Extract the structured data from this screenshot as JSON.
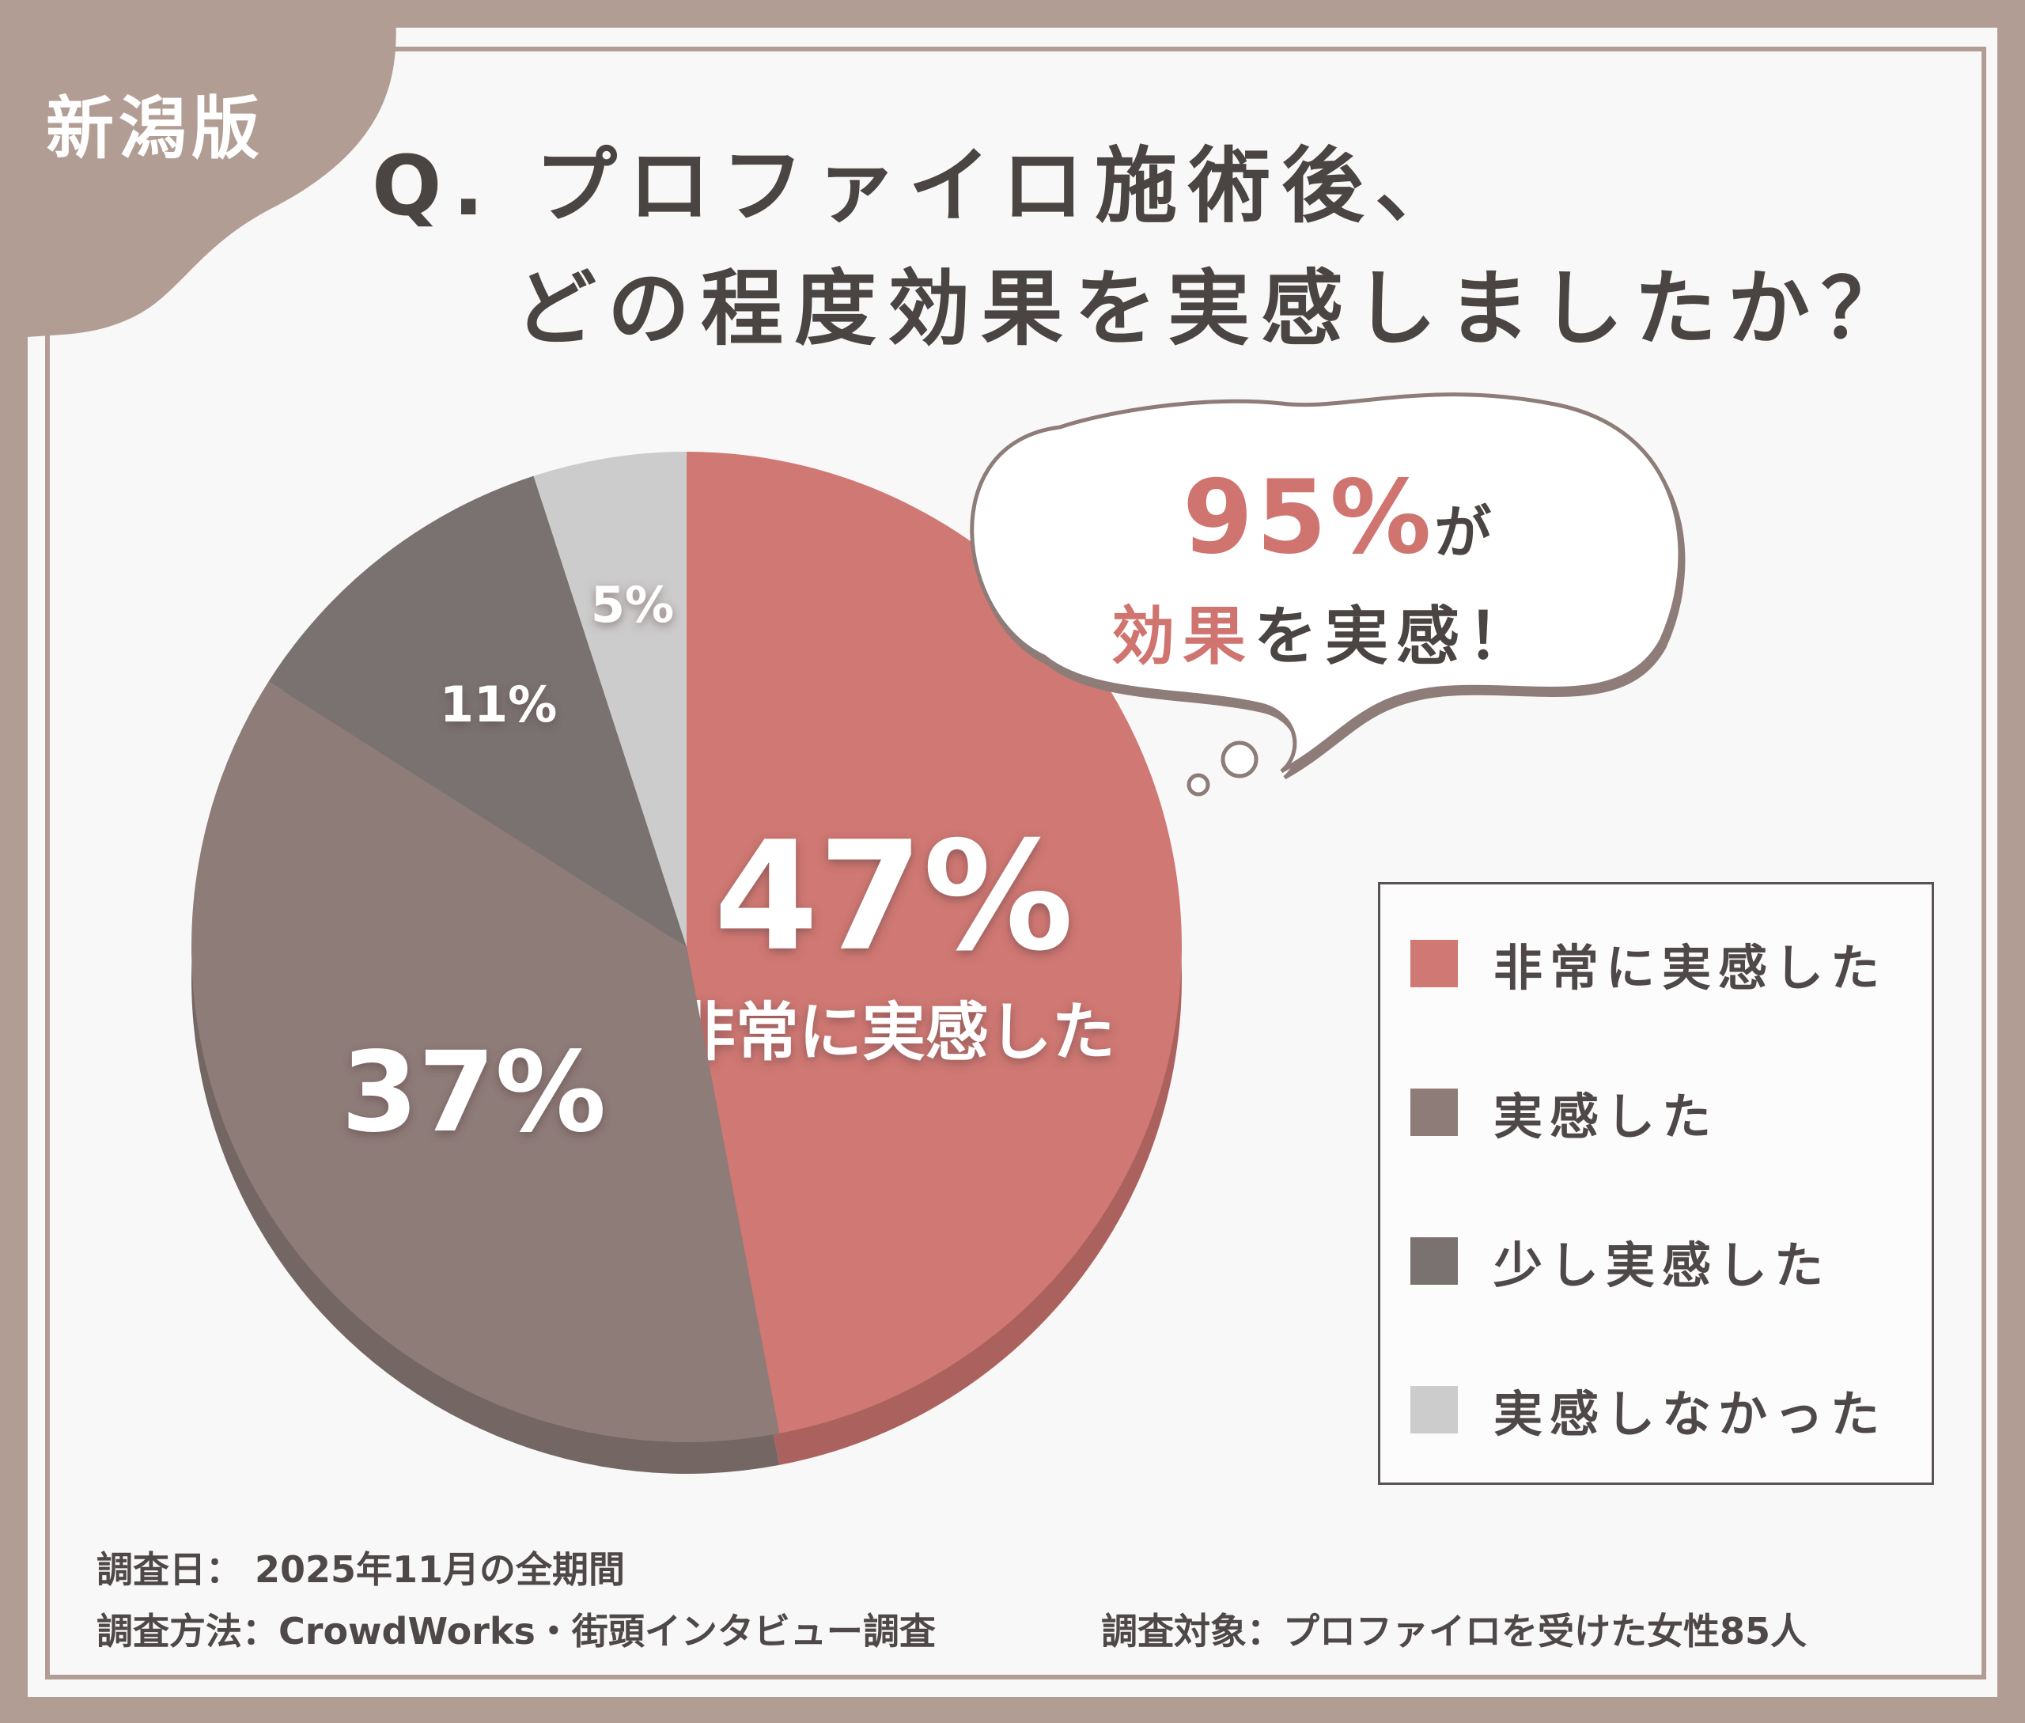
{
  "badge": "新潟版",
  "question": {
    "line1": "Q. プロファイロ施術後、",
    "line2": "どの程度効果を実感しましたか？"
  },
  "callout": {
    "highlight": "95%",
    "suffix": "が",
    "line2_accent": "効果",
    "line2_rest": "を実感！",
    "accent_color": "#d07470"
  },
  "footer": {
    "date": "調査日： 2025年11月の全期間",
    "method": "調査方法：CrowdWorks・街頭インタビュー調査",
    "target": "調査対象：プロファイロを受けた女性85人"
  },
  "chart_data": {
    "type": "pie",
    "slices": [
      {
        "label": "非常に実感した",
        "value": 47,
        "display": "47%",
        "color": "#d07873"
      },
      {
        "label": "実感した",
        "value": 37,
        "display": "37%",
        "color": "#8e7c79"
      },
      {
        "label": "少し実感した",
        "value": 11,
        "display": "11%",
        "color": "#7a7271"
      },
      {
        "label": "実感しなかった",
        "value": 5,
        "display": "5%",
        "color": "#cdcccc"
      }
    ],
    "inline_label_47": "非常に実感した",
    "legend_placement": "right"
  }
}
